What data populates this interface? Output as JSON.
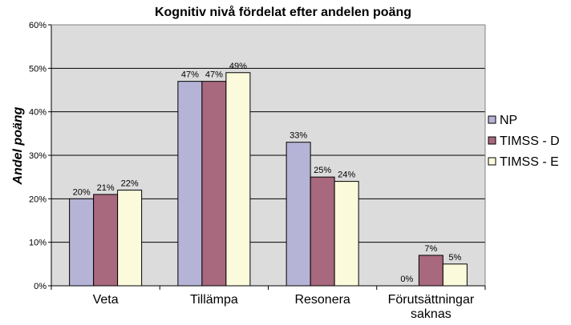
{
  "chart_data": {
    "type": "bar",
    "title": "Kognitiv nivå fördelat efter andelen poäng",
    "xlabel": "",
    "ylabel": "Andel poäng",
    "categories": [
      "Veta",
      "Tillämpa",
      "Resonera",
      "Förutsättningar saknas"
    ],
    "category_lines": [
      [
        "Veta"
      ],
      [
        "Tillämpa"
      ],
      [
        "Resonera"
      ],
      [
        "Förutsättningar",
        "saknas"
      ]
    ],
    "ylim": [
      0,
      60
    ],
    "yticks": [
      0,
      10,
      20,
      30,
      40,
      50,
      60
    ],
    "ytick_labels": [
      "0%",
      "10%",
      "20%",
      "30%",
      "40%",
      "50%",
      "60%"
    ],
    "value_suffix": "%",
    "grid": true,
    "legend_position": "right",
    "series": [
      {
        "name": "NP",
        "values": [
          20,
          47,
          33,
          0
        ],
        "color": "#b5b3d6"
      },
      {
        "name": "TIMSS - D",
        "values": [
          21,
          47,
          25,
          7
        ],
        "color": "#a8687e"
      },
      {
        "name": "TIMSS - E",
        "values": [
          22,
          49,
          24,
          5
        ],
        "color": "#fbfbdc"
      }
    ],
    "plot_background": "#dcdcdc"
  }
}
